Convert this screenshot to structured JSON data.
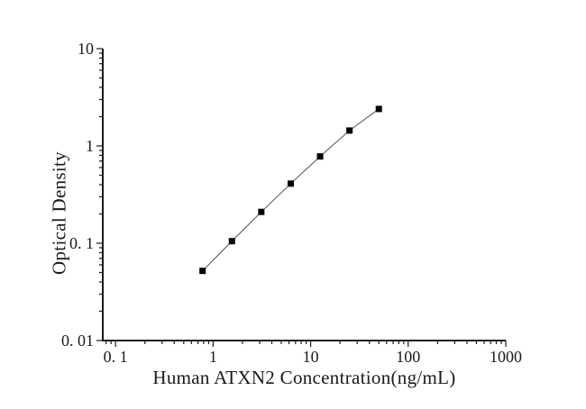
{
  "chart_data": {
    "type": "line",
    "x_scale": "log",
    "y_scale": "log",
    "title": "",
    "xlabel": "Human ATXN2 Concentration(ng/mL)",
    "ylabel": "Optical Density",
    "x": [
      0.78,
      1.56,
      3.12,
      6.25,
      12.5,
      25,
      50
    ],
    "y": [
      0.052,
      0.105,
      0.21,
      0.41,
      0.78,
      1.44,
      2.4
    ],
    "xlim": [
      0.074,
      1000
    ],
    "ylim": [
      0.01,
      10
    ],
    "x_ticks": [
      {
        "value": 0.1,
        "label": "0. 1"
      },
      {
        "value": 1,
        "label": "1"
      },
      {
        "value": 10,
        "label": "10"
      },
      {
        "value": 100,
        "label": "100"
      },
      {
        "value": 1000,
        "label": "1000"
      }
    ],
    "y_ticks": [
      {
        "value": 0.01,
        "label": "0. 01"
      },
      {
        "value": 0.1,
        "label": "0. 1"
      },
      {
        "value": 1,
        "label": "1"
      },
      {
        "value": 10,
        "label": "10"
      }
    ],
    "grid": false,
    "legend": null,
    "marker": "square",
    "colors": {
      "axis": "#1a1a1a",
      "text": "#1a1a1a",
      "line": "#4d4d4d",
      "marker": "#000000",
      "background": "#ffffff"
    }
  }
}
